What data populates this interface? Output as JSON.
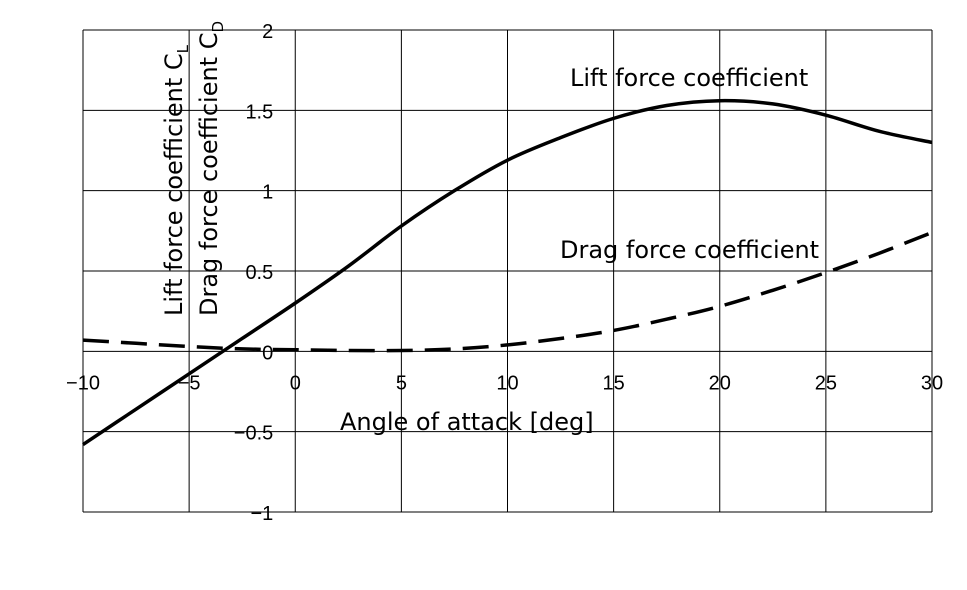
{
  "chart_data": {
    "type": "line",
    "title": "",
    "xlabel": "Angle of attack [deg]",
    "ylabel_lines": [
      {
        "text": "Lift force coefficient C",
        "sub": "L"
      },
      {
        "text": "Drag force coefficient C",
        "sub": "D"
      }
    ],
    "xlim": [
      -10,
      30
    ],
    "ylim": [
      -1,
      2
    ],
    "x_ticks": [
      -10,
      -5,
      0,
      5,
      10,
      15,
      20,
      25,
      30
    ],
    "x_tick_labels": [
      "−10",
      "−5",
      "0",
      "5",
      "10",
      "15",
      "20",
      "25",
      "30"
    ],
    "y_ticks": [
      -1,
      -0.5,
      0,
      0.5,
      1,
      1.5,
      2
    ],
    "y_tick_labels": [
      "−1",
      "−0.5",
      "0",
      "0.5",
      "1",
      "1.5",
      "2"
    ],
    "grid": true,
    "series": [
      {
        "name": "Lift force coefficient",
        "style": "solid",
        "color": "#000000",
        "x": [
          -10,
          -7.5,
          -5,
          -2.5,
          0,
          2.5,
          5,
          7.5,
          10,
          12.5,
          15,
          17.5,
          20,
          22.5,
          25,
          27.5,
          30
        ],
        "y": [
          -0.58,
          -0.36,
          -0.14,
          0.08,
          0.3,
          0.53,
          0.78,
          1.0,
          1.19,
          1.33,
          1.45,
          1.53,
          1.56,
          1.54,
          1.47,
          1.37,
          1.3
        ]
      },
      {
        "name": "Drag force coefficient",
        "style": "dashed",
        "color": "#000000",
        "x": [
          -10,
          -7.5,
          -5,
          -2.5,
          0,
          2.5,
          5,
          7.5,
          10,
          12.5,
          15,
          17.5,
          20,
          22.5,
          25,
          27.5,
          30
        ],
        "y": [
          0.07,
          0.05,
          0.03,
          0.015,
          0.01,
          0.005,
          0.005,
          0.015,
          0.04,
          0.08,
          0.13,
          0.2,
          0.28,
          0.38,
          0.49,
          0.61,
          0.74
        ]
      }
    ]
  }
}
